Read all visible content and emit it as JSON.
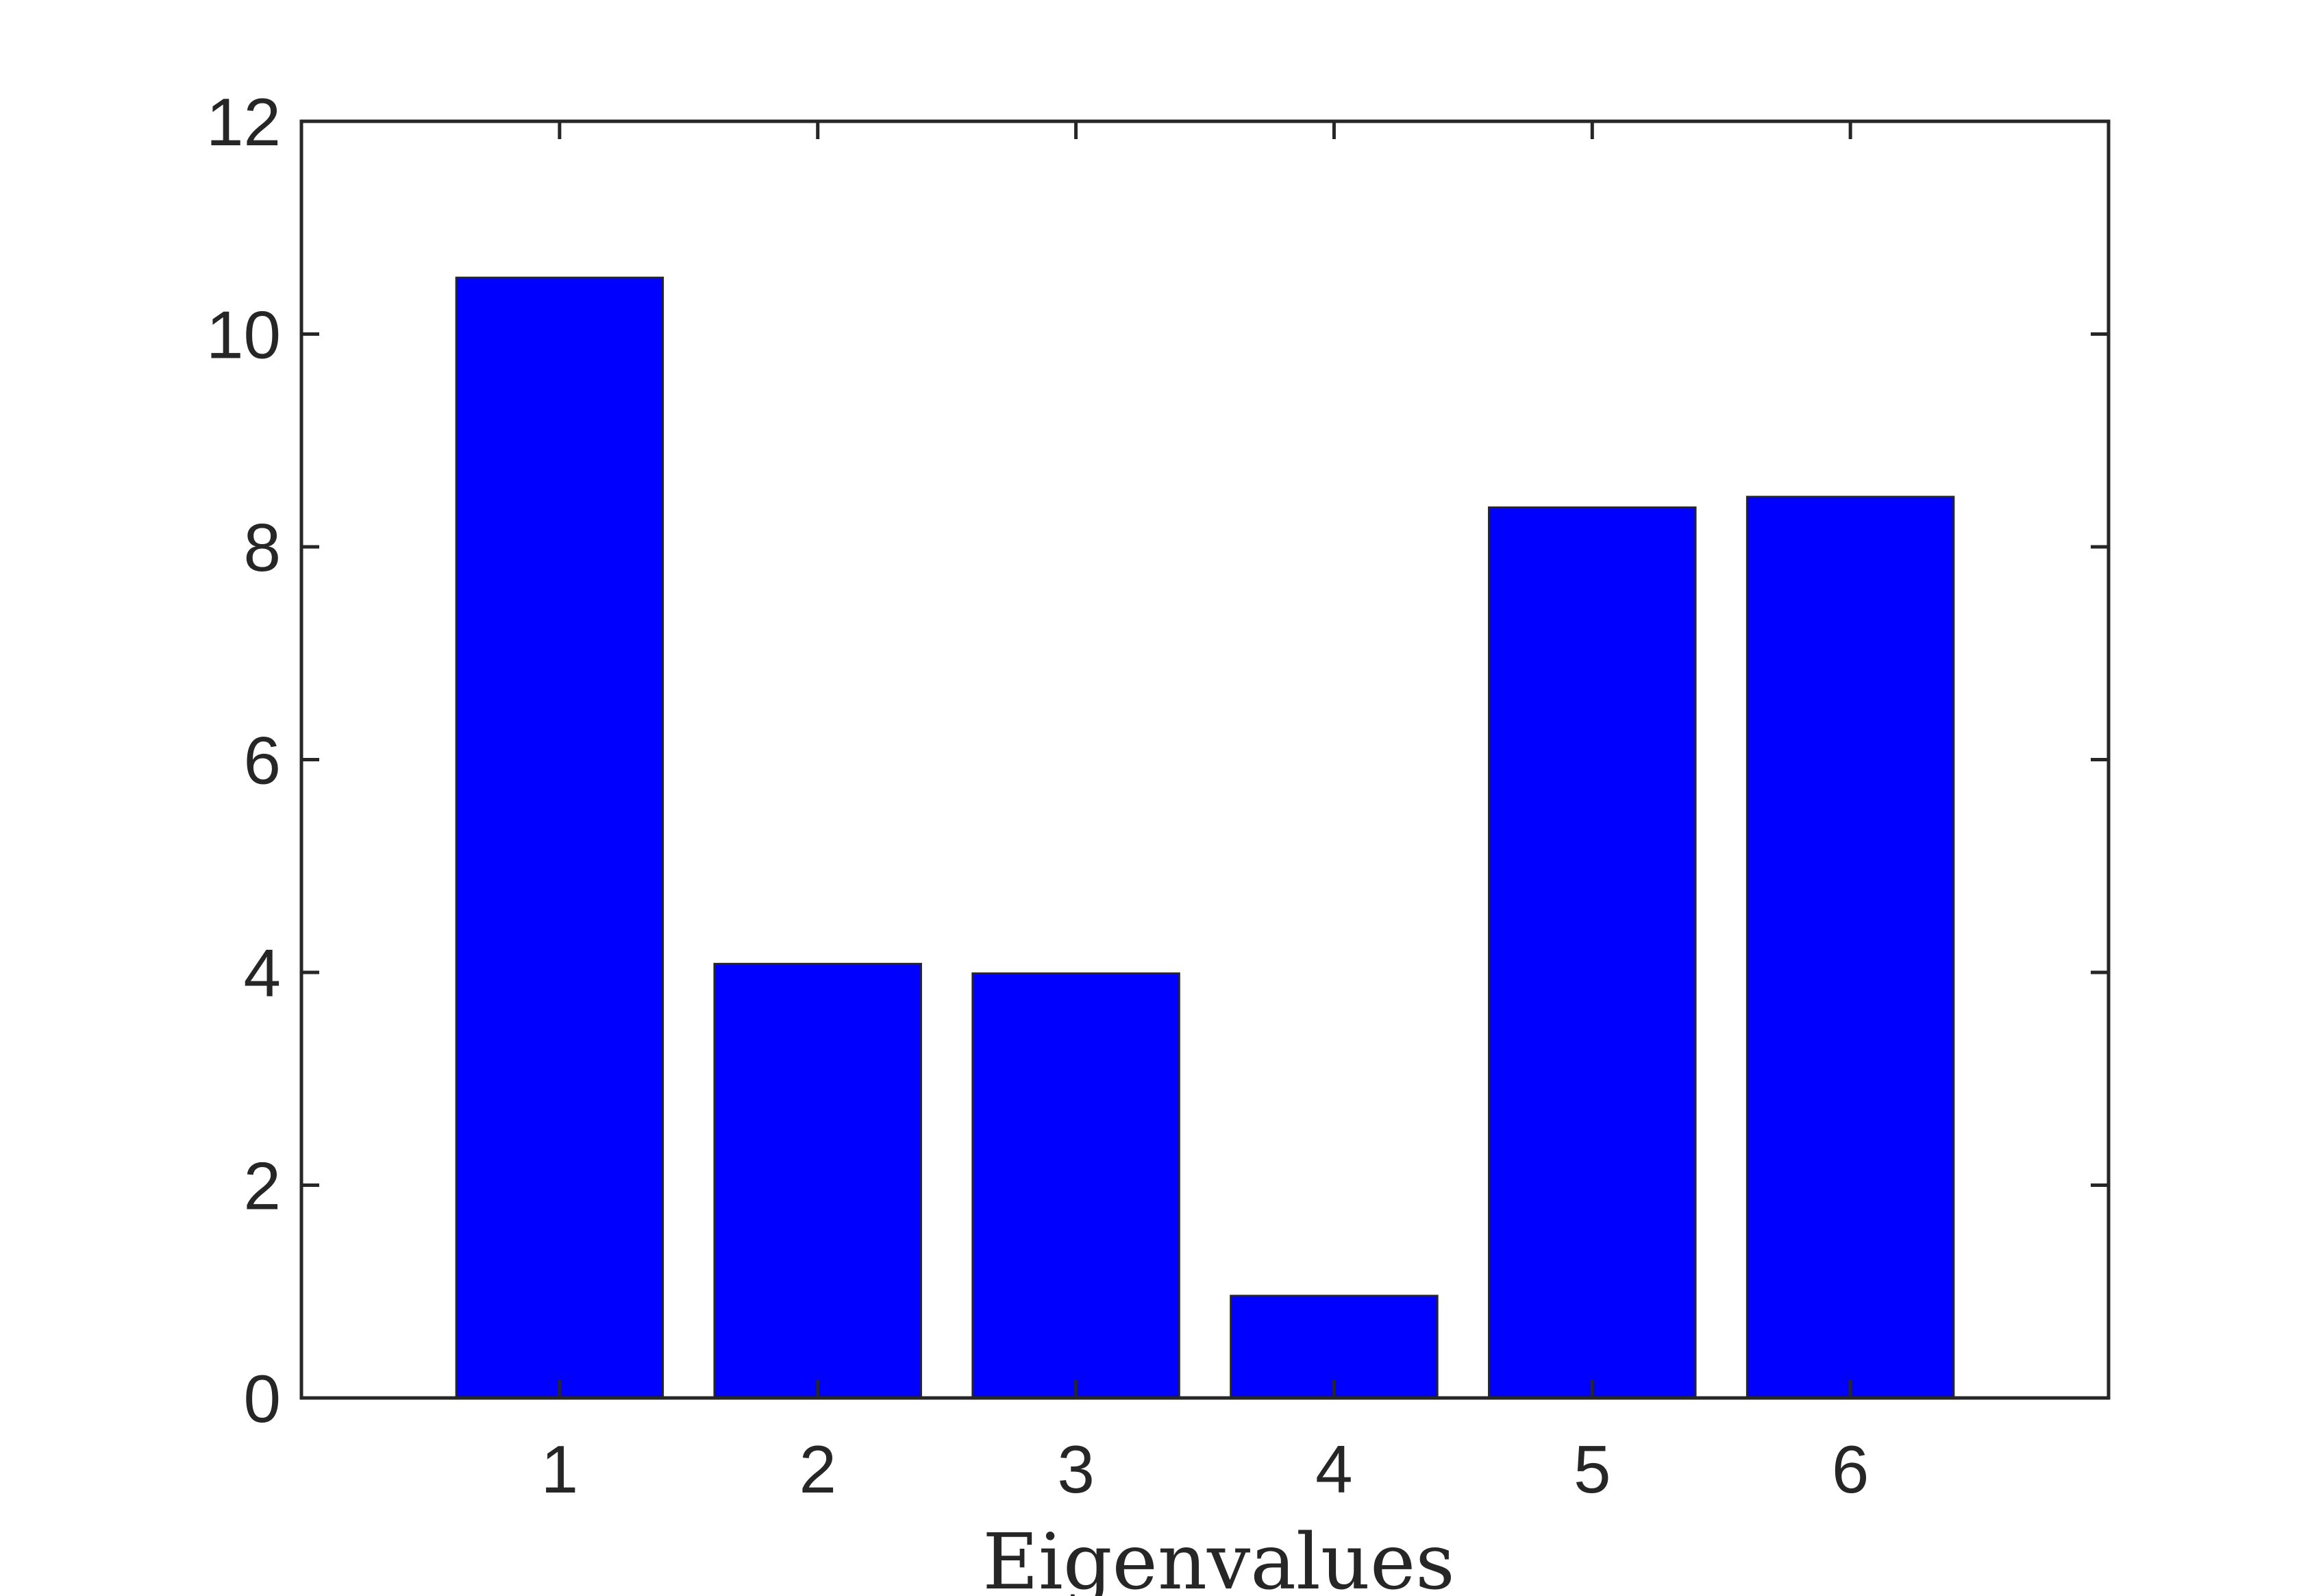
{
  "chart_data": {
    "type": "bar",
    "categories": [
      "1",
      "2",
      "3",
      "4",
      "5",
      "6"
    ],
    "values": [
      10.53,
      4.08,
      3.99,
      0.96,
      8.37,
      8.47
    ],
    "title": "",
    "xlabel": "Eigenvalues",
    "ylabel": "",
    "xlim": [
      0,
      7
    ],
    "ylim": [
      0,
      12
    ],
    "yticks": [
      0,
      2,
      4,
      6,
      8,
      10,
      12
    ],
    "ytick_labels": [
      "0",
      "2",
      "4",
      "6",
      "8",
      "10",
      "12"
    ],
    "grid": false,
    "legend": "none",
    "bar_color": "#0000ff",
    "bar_edge_color": "#262626",
    "axis_color": "#262626"
  }
}
